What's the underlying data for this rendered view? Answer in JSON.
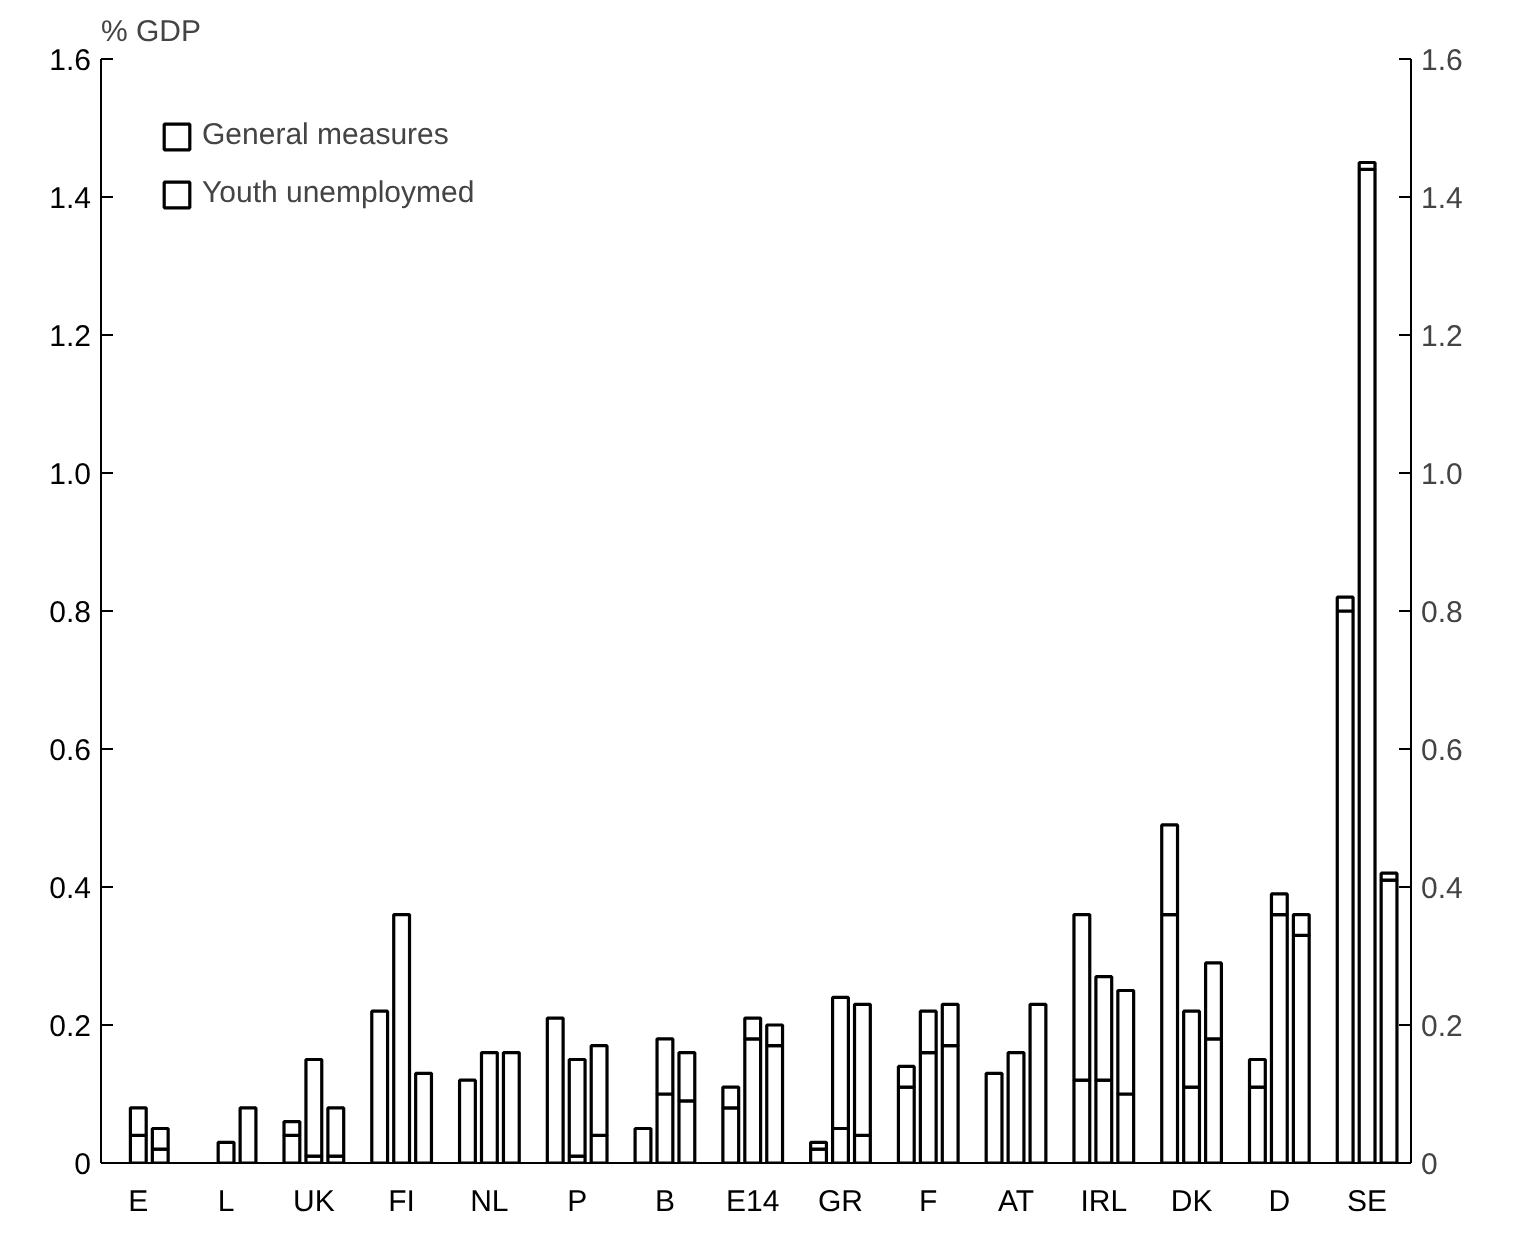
{
  "chart_data": {
    "type": "bar",
    "stacked": true,
    "ylabel": "% GDP",
    "categories": [
      null,
      "E",
      null,
      null,
      null,
      "L",
      null,
      null,
      null,
      "UK",
      null,
      null,
      null,
      "FI",
      null,
      null,
      null,
      "NL",
      null,
      null,
      null,
      "P",
      null,
      null,
      null,
      "B",
      null,
      null,
      null,
      "E14",
      null,
      null,
      null,
      "GR",
      null,
      null,
      null,
      "F",
      null,
      null,
      null,
      "AT",
      null,
      null,
      null,
      "IRL",
      null,
      null,
      null,
      "DK",
      null,
      null,
      null,
      "D",
      null,
      null,
      null,
      "SE",
      null,
      null
    ],
    "series": [
      {
        "name": "Youth unemploymed",
        "color": "#ffffff",
        "values": [
          null,
          0.04,
          0.02,
          null,
          null,
          null,
          null,
          null,
          0.04,
          0.01,
          0.01,
          null,
          null,
          null,
          null,
          null,
          null,
          null,
          null,
          null,
          null,
          0.01,
          0.04,
          null,
          null,
          0.1,
          0.09,
          null,
          0.08,
          0.18,
          0.17,
          null,
          0.02,
          0.05,
          0.04,
          null,
          0.11,
          0.16,
          0.17,
          null,
          null,
          null,
          null,
          null,
          0.12,
          0.12,
          0.1,
          null,
          0.36,
          0.11,
          0.18,
          null,
          0.11,
          0.36,
          0.33,
          null,
          0.8,
          1.44,
          0.41,
          null
        ]
      },
      {
        "name": "General measures",
        "color": "#ffffff",
        "values": [
          null,
          0.04,
          0.03,
          null,
          null,
          0.03,
          0.08,
          null,
          0.02,
          0.14,
          0.07,
          null,
          0.22,
          0.36,
          0.13,
          null,
          0.12,
          0.16,
          0.16,
          null,
          0.21,
          0.14,
          0.13,
          null,
          0.05,
          0.08,
          0.07,
          null,
          0.03,
          0.03,
          0.03,
          null,
          0.01,
          0.19,
          0.19,
          null,
          0.03,
          0.06,
          0.06,
          null,
          0.13,
          0.16,
          0.23,
          null,
          0.24,
          0.15,
          0.15,
          null,
          0.13,
          0.11,
          0.11,
          null,
          0.04,
          0.03,
          0.03,
          null,
          0.02,
          0.01,
          0.01,
          null
        ]
      }
    ],
    "ylim": [
      0,
      1.6
    ],
    "yticks": [
      0,
      0.2,
      0.4,
      0.6,
      0.8,
      {
        "value": 1,
        "label": "1.0"
      },
      1.2,
      1.4,
      1.6
    ],
    "y2lim": [
      0,
      1.6
    ],
    "y2ticks": [
      0,
      0.2,
      0.4,
      0.6,
      0.8,
      {
        "value": 1,
        "label": "1.0"
      },
      1.2,
      1.4,
      1.6
    ],
    "grid": false,
    "legend": "top left"
  }
}
